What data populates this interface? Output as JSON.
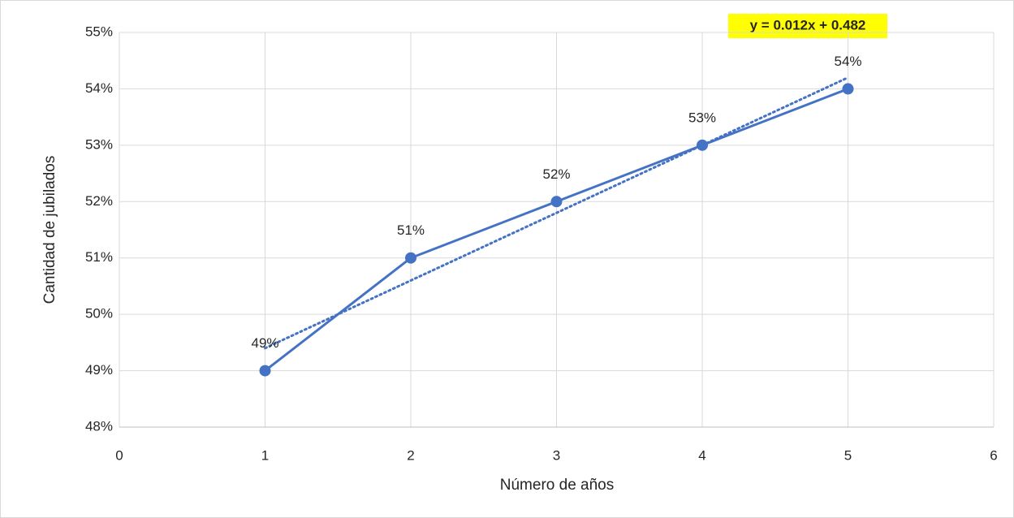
{
  "chart_data": {
    "type": "line",
    "x_label": "Número de años",
    "y_label": "Cantidad de jubilados",
    "x": [
      1,
      2,
      3,
      4,
      5
    ],
    "values": [
      49,
      51,
      52,
      53,
      54
    ],
    "value_labels": [
      "49%",
      "51%",
      "52%",
      "53%",
      "54%"
    ],
    "color": "#4472c4",
    "xlim": [
      0,
      6
    ],
    "xticks": [
      0,
      1,
      2,
      3,
      4,
      5,
      6
    ],
    "ylim": [
      48,
      55
    ],
    "yticks": [
      {
        "value": 48,
        "label": "48%"
      },
      {
        "value": 49,
        "label": "49%"
      },
      {
        "value": 50,
        "label": "50%"
      },
      {
        "value": 51,
        "label": "51%"
      },
      {
        "value": 52,
        "label": "52%"
      },
      {
        "value": 53,
        "label": "53%"
      },
      {
        "value": 54,
        "label": "54%"
      },
      {
        "value": 55,
        "label": "55%"
      }
    ],
    "grid": true,
    "trendline": "linear",
    "trendline_equation": "y = 0.012x + 0.482"
  }
}
